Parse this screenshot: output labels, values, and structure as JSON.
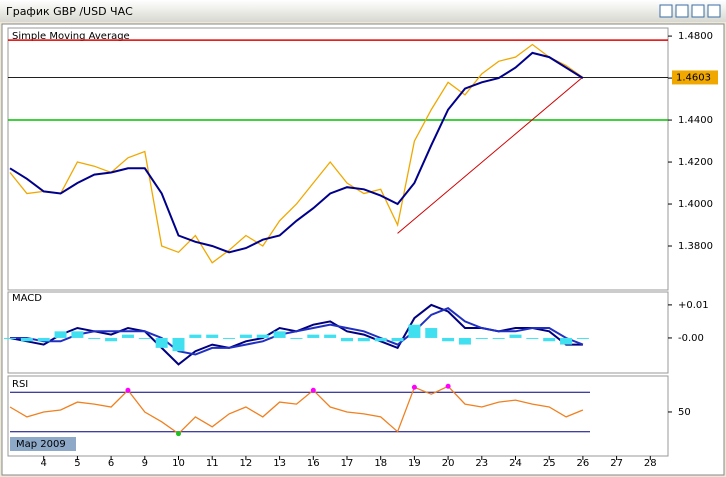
{
  "window_title": "График GBP /USD  ЧАС",
  "chart_data": [
    {
      "type": "line",
      "title": "Simple Moving Average",
      "ylim": [
        1.36,
        1.4829
      ],
      "yticks": [
        {
          "value": 1.38,
          "label": "1.3800"
        },
        {
          "value": 1.4,
          "label": "1.4000"
        },
        {
          "value": 1.42,
          "label": "1.4200"
        },
        {
          "value": 1.44,
          "label": "1.4400"
        },
        {
          "value": 1.46,
          "label": "1.4600"
        },
        {
          "value": 1.48,
          "label": "1.4800"
        }
      ],
      "series": [
        {
          "color": "#f0a800",
          "values": [
            1.415,
            1.405,
            1.406,
            1.405,
            1.42,
            1.418,
            1.415,
            1.422,
            1.425,
            1.38,
            1.377,
            1.385,
            1.372,
            1.378,
            1.385,
            1.38,
            1.392,
            1.4,
            1.41,
            1.42,
            1.41,
            1.405,
            1.407,
            1.39,
            1.43,
            1.445,
            1.458,
            1.452,
            1.462,
            1.468,
            1.47,
            1.476,
            1.47,
            1.466,
            1.4603,
            null,
            null,
            null,
            null
          ]
        },
        {
          "name": "Simple Moving Average",
          "color": "#00008b",
          "values": [
            1.417,
            1.412,
            1.406,
            1.405,
            1.41,
            1.414,
            1.415,
            1.417,
            1.417,
            1.405,
            1.385,
            1.382,
            1.38,
            1.377,
            1.379,
            1.383,
            1.385,
            1.392,
            1.398,
            1.405,
            1.408,
            1.407,
            1.404,
            1.4,
            1.41,
            1.428,
            1.445,
            1.455,
            1.458,
            1.46,
            1.465,
            1.472,
            1.47,
            1.465,
            1.46,
            null,
            null,
            null,
            null
          ]
        }
      ],
      "hlines": [
        {
          "value": 1.4781,
          "color": "#e00000"
        },
        {
          "value": 1.44,
          "color": "#00c000"
        },
        {
          "value": 1.4603,
          "color": "#000000"
        }
      ],
      "last_price": 1.4603,
      "trendline": {
        "x": [
          23,
          34
        ],
        "values": [
          1.386,
          1.4605
        ],
        "color": "#d00000"
      }
    },
    {
      "type": "macd",
      "title": "MACD",
      "ylim": [
        -0.0103,
        0.0139
      ],
      "yticks": [
        {
          "value": 0.01,
          "label": "+0.01"
        },
        {
          "value": 0,
          "label": "-0.00"
        }
      ],
      "series": [
        {
          "color": "#000080",
          "values": [
            0,
            -0.001,
            -0.002,
            0.001,
            0.003,
            0.002,
            0.001,
            0.003,
            0.002,
            -0.003,
            -0.008,
            -0.004,
            -0.002,
            -0.003,
            -0.001,
            0,
            0.003,
            0.002,
            0.004,
            0.005,
            0.002,
            0.001,
            -0.001,
            -0.003,
            0.006,
            0.01,
            0.008,
            0.003,
            0.003,
            0.002,
            0.003,
            0.003,
            0.002,
            -0.002,
            -0.002,
            null,
            null,
            null,
            null
          ]
        },
        {
          "color": "#2030c0",
          "values": [
            0,
            0,
            -0.001,
            -0.001,
            0.001,
            0.002,
            0.002,
            0.002,
            0.002,
            0,
            -0.004,
            -0.005,
            -0.003,
            -0.003,
            -0.002,
            -0.001,
            0.001,
            0.002,
            0.003,
            0.004,
            0.003,
            0.002,
            0,
            -0.002,
            0.002,
            0.007,
            0.009,
            0.005,
            0.003,
            0.002,
            0.002,
            0.003,
            0.003,
            0,
            -0.002,
            null,
            null,
            null,
            null
          ]
        },
        {
          "color": "#40e0f0",
          "histogram": true,
          "values": [
            0,
            -0.001,
            -0.001,
            0.002,
            0.002,
            0,
            -0.001,
            0.001,
            0,
            -0.003,
            -0.004,
            0.001,
            0.001,
            0,
            0.001,
            0.001,
            0.002,
            0,
            0.001,
            0.001,
            -0.001,
            -0.001,
            -0.001,
            -0.001,
            0.004,
            0.003,
            -0.001,
            -0.002,
            0,
            0,
            0.001,
            0,
            -0.001,
            -0.002,
            0,
            null,
            null,
            null,
            null
          ]
        }
      ]
    },
    {
      "type": "line",
      "title": "RSI",
      "ylim": [
        6.4,
        84.4
      ],
      "yticks": [
        50
      ],
      "levels": [
        30,
        70
      ],
      "overbought_color": "#ff00ff",
      "oversold_color": "#20c020",
      "period_label": "Мар 2009",
      "categories": [
        null,
        null,
        "4",
        null,
        "5",
        null,
        "6",
        null,
        "9",
        null,
        "10",
        null,
        "11",
        null,
        "12",
        null,
        "13",
        null,
        "16",
        null,
        "17",
        null,
        "18",
        null,
        "19",
        null,
        "20",
        null,
        "23",
        null,
        "24",
        null,
        "25",
        null,
        "26",
        null,
        "27",
        null,
        "28"
      ],
      "series": [
        {
          "color": "#f08020",
          "values": [
            55,
            45,
            50,
            52,
            60,
            58,
            55,
            72,
            50,
            40,
            28,
            45,
            35,
            48,
            55,
            45,
            60,
            58,
            72,
            55,
            50,
            48,
            45,
            30,
            75,
            68,
            76,
            58,
            55,
            60,
            62,
            58,
            55,
            45,
            52,
            null,
            null,
            null,
            null
          ]
        }
      ]
    }
  ]
}
